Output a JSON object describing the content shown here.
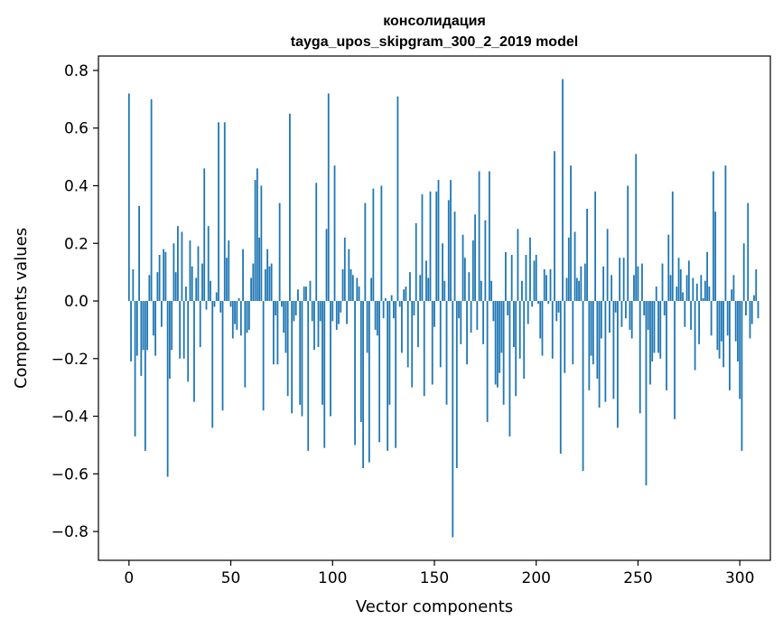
{
  "chart_data": {
    "type": "bar",
    "title_line1": "консолидация",
    "title_line2": "tayga_upos_skipgram_300_2_2019 model",
    "xlabel": "Vector components",
    "ylabel": "Components values",
    "xlim": [
      -15,
      315
    ],
    "ylim": [
      -0.9,
      0.85
    ],
    "xticks": [
      0,
      50,
      100,
      150,
      200,
      250,
      300
    ],
    "xtick_labels": [
      "0",
      "50",
      "100",
      "150",
      "200",
      "250",
      "300"
    ],
    "yticks": [
      -0.8,
      -0.6,
      -0.4,
      -0.2,
      0.0,
      0.2,
      0.4,
      0.6,
      0.8
    ],
    "ytick_labels": [
      "−0.8",
      "−0.6",
      "−0.4",
      "−0.2",
      "0.0",
      "0.2",
      "0.4",
      "0.6",
      "0.8"
    ],
    "bar_color": "#1f77b4",
    "grid": false,
    "values": [
      0.72,
      -0.21,
      0.11,
      -0.47,
      -0.19,
      0.33,
      -0.26,
      -0.17,
      -0.52,
      -0.17,
      0.09,
      0.7,
      -0.12,
      -0.19,
      0.1,
      0.16,
      -0.09,
      0.18,
      0.17,
      -0.61,
      -0.27,
      -0.17,
      0.2,
      0.1,
      0.26,
      -0.2,
      0.24,
      -0.2,
      0.05,
      -0.28,
      0.21,
      0.12,
      -0.35,
      0.08,
      0.19,
      -0.16,
      0.13,
      0.46,
      -0.03,
      0.26,
      0.07,
      -0.44,
      -0.02,
      0.03,
      0.62,
      -0.04,
      -0.38,
      0.62,
      0.15,
      0.21,
      -0.02,
      -0.13,
      -0.08,
      -0.1,
      0.01,
      -0.12,
      0.18,
      -0.3,
      -0.11,
      -0.1,
      0.08,
      0.13,
      0.42,
      0.46,
      0.22,
      0.4,
      -0.38,
      0.11,
      0.18,
      0.12,
      0.13,
      -0.22,
      -0.05,
      -0.22,
      0.34,
      -0.02,
      -0.11,
      -0.18,
      -0.33,
      0.65,
      -0.39,
      -0.07,
      -0.05,
      0.04,
      -0.36,
      -0.4,
      0.05,
      0.05,
      -0.52,
      0.07,
      -0.07,
      -0.17,
      0.41,
      -0.16,
      -0.07,
      -0.36,
      -0.51,
      0.25,
      0.72,
      -0.4,
      -0.07,
      0.47,
      -0.1,
      -0.08,
      -0.04,
      0.11,
      0.22,
      -0.08,
      0.18,
      0.11,
      0.09,
      -0.5,
      0.08,
      0.05,
      -0.42,
      -0.58,
      0.34,
      -0.18,
      -0.56,
      0.08,
      0.39,
      -0.1,
      -0.12,
      -0.49,
      0.4,
      -0.06,
      0.01,
      -0.52,
      -0.36,
      0.02,
      -0.06,
      -0.51,
      0.71,
      -0.02,
      -0.18,
      0.04,
      0.05,
      -0.23,
      0.1,
      -0.3,
      -0.05,
      0.27,
      -0.16,
      0.09,
      0.37,
      -0.33,
      0.14,
      0.08,
      0.38,
      -0.29,
      -0.09,
      0.38,
      0.42,
      -0.23,
      0.2,
      0.07,
      -0.36,
      0.35,
      0.42,
      -0.82,
      0.31,
      -0.58,
      -0.06,
      -0.15,
      0.23,
      0.15,
      -0.22,
      0.1,
      -0.11,
      0.21,
      0.3,
      -0.1,
      0.45,
      0.07,
      -0.15,
      0.28,
      -0.42,
      0.45,
      0.07,
      -0.07,
      -0.29,
      -0.3,
      -0.25,
      -0.18,
      -0.36,
      0.17,
      -0.05,
      -0.47,
      0.16,
      -0.16,
      -0.33,
      0.25,
      -0.2,
      0.07,
      -0.27,
      0.16,
      -0.08,
      0.22,
      -0.02,
      0.14,
      0.16,
      -0.01,
      -0.13,
      -0.19,
      0.11,
      0.09,
      -0.01,
      0.11,
      -0.2,
      0.52,
      -0.07,
      -0.04,
      -0.53,
      0.77,
      -0.25,
      0.08,
      0.22,
      0.47,
      -0.22,
      0.24,
      0.08,
      0.07,
      0.12,
      -0.59,
      0.13,
      0.32,
      -0.31,
      -0.19,
      -0.22,
      0.38,
      -0.27,
      -0.37,
      -0.13,
      0.12,
      -0.35,
      0.25,
      -0.11,
      0.09,
      -0.34,
      -0.04,
      -0.44,
      0.15,
      -0.09,
      0.15,
      -0.06,
      0.4,
      -0.1,
      -0.13,
      0.09,
      0.51,
      0.12,
      -0.39,
      0.13,
      -0.05,
      -0.64,
      -0.1,
      -0.29,
      -0.21,
      -0.18,
      0.05,
      -0.18,
      -0.2,
      0.13,
      -0.05,
      -0.31,
      0.23,
      0.09,
      0.38,
      -0.41,
      0.05,
      0.15,
      0.11,
      0.03,
      -0.09,
      0.09,
      0.14,
      -0.1,
      0.08,
      -0.24,
      0.06,
      -0.15,
      0.09,
      0.01,
      0.07,
      0.17,
      0.05,
      -0.12,
      0.45,
      0.31,
      -0.17,
      -0.2,
      -0.14,
      -0.23,
      0.47,
      -0.12,
      -0.31,
      0.04,
      0.09,
      -0.14,
      -0.21,
      -0.34,
      -0.52,
      0.2,
      -0.05,
      0.34,
      -0.13,
      -0.08,
      0.02,
      0.11,
      -0.06
    ]
  }
}
